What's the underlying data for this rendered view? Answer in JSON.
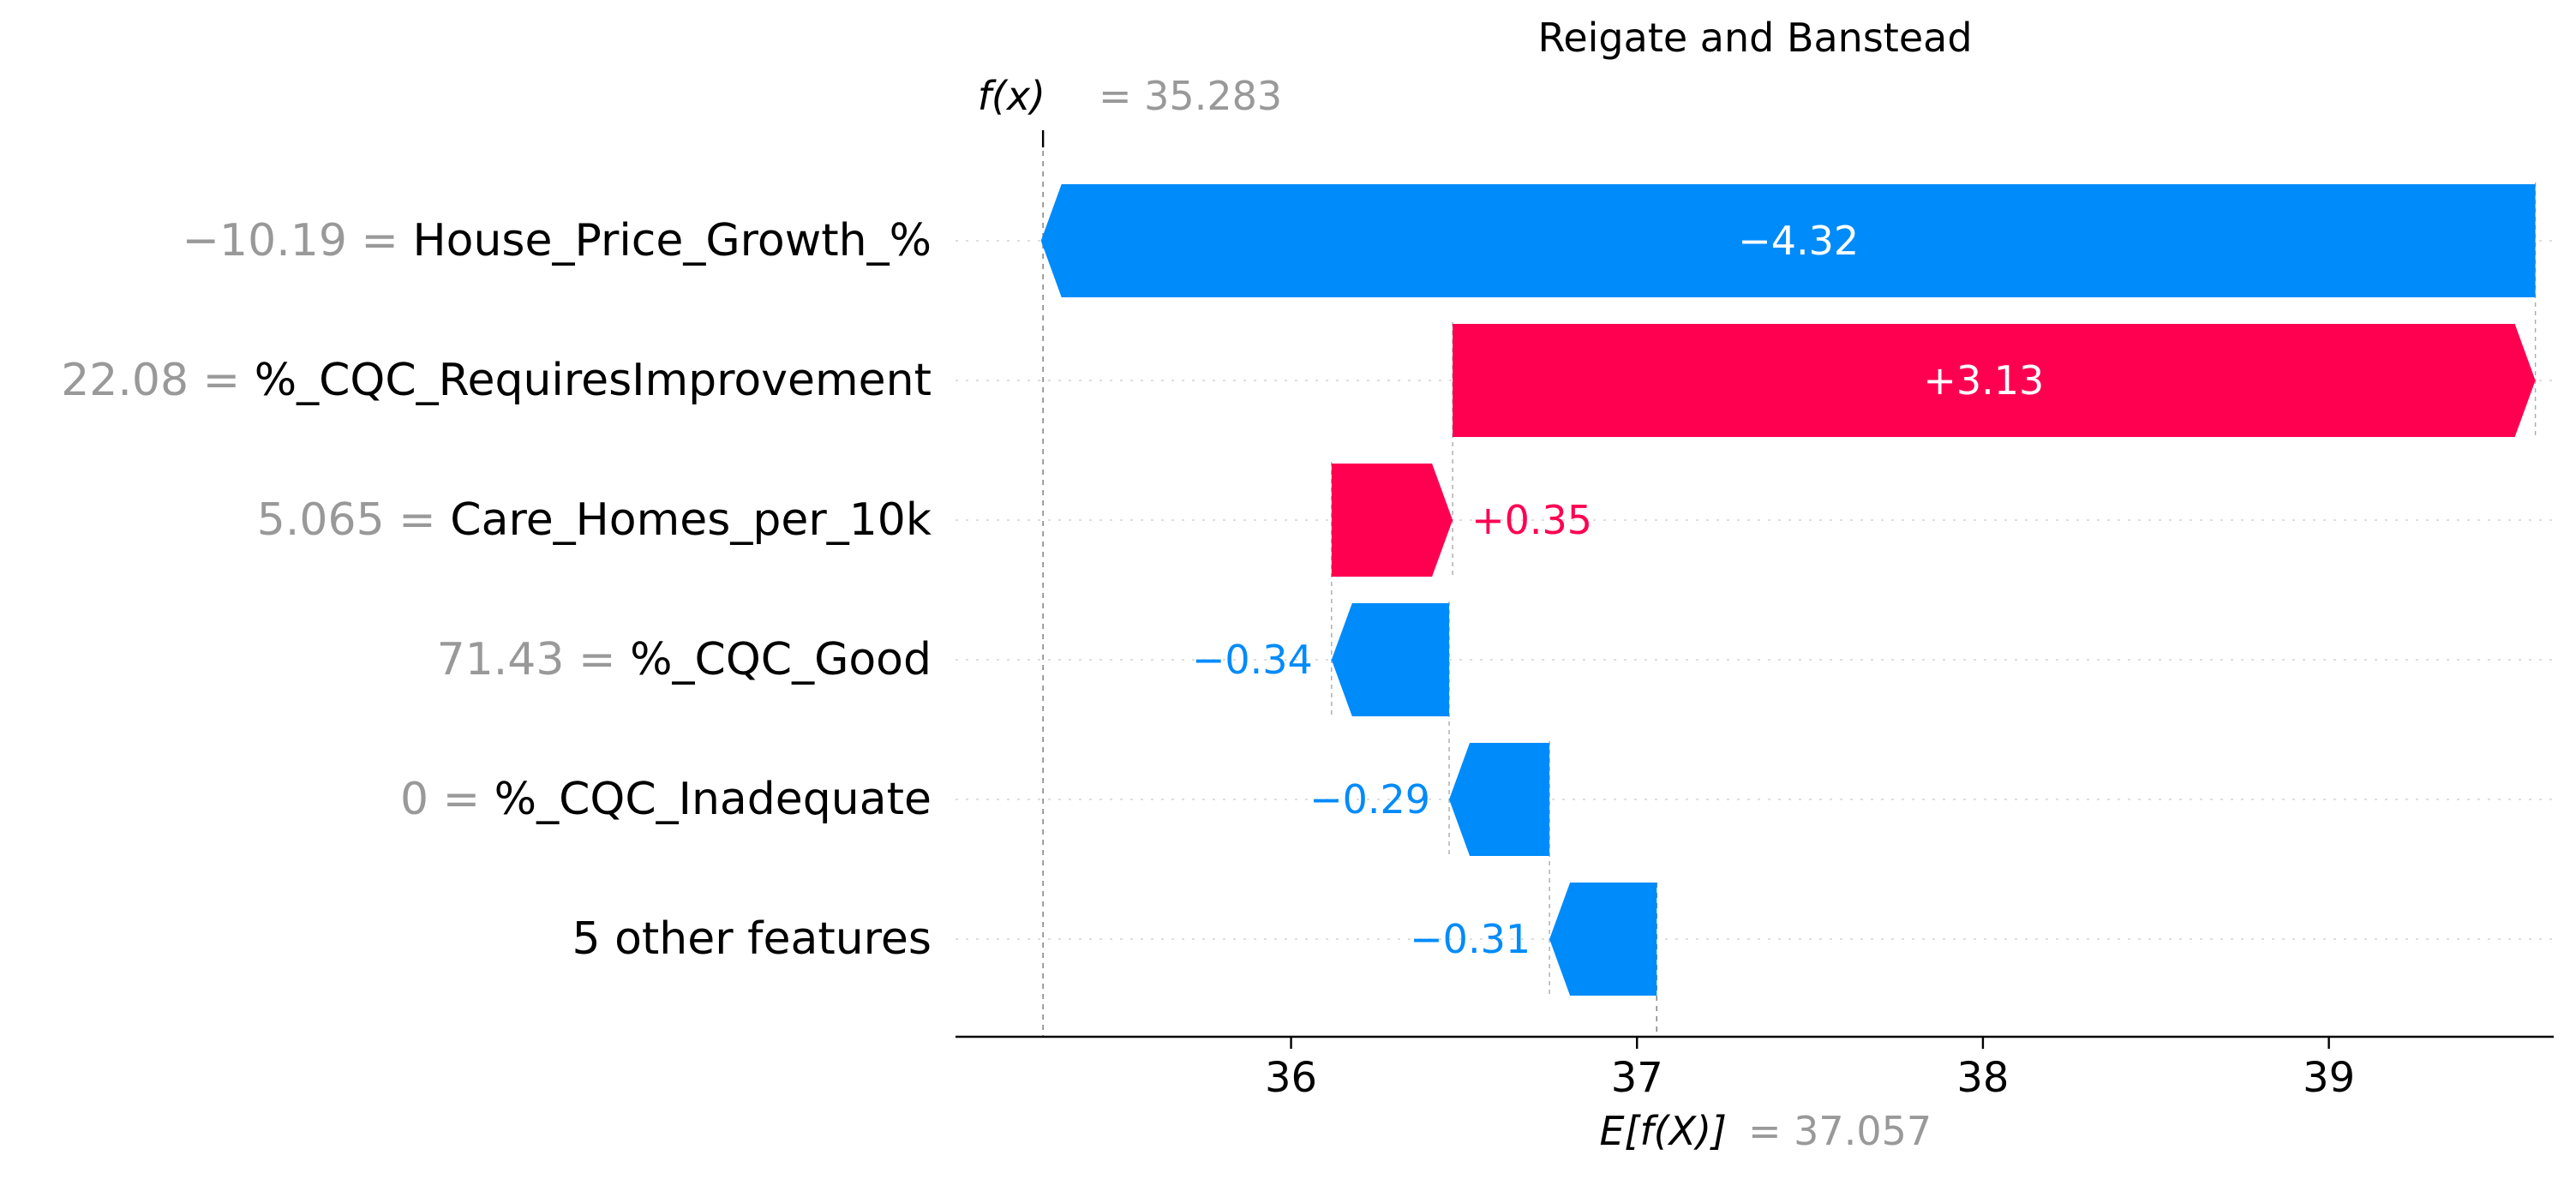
{
  "chart_data": {
    "type": "waterfall",
    "title": "Reigate and Banstead",
    "fx_prefix": "f(x)",
    "fx_value": "= 35.283",
    "ex_prefix": "E[f(X)]",
    "ex_value": "= 37.057",
    "base_value": 37.057,
    "output_value": 35.283,
    "xlim": [
      35.03,
      39.65
    ],
    "xticks": [
      36,
      37,
      38,
      39
    ],
    "grid": false,
    "colors": {
      "positive": "#ff0051",
      "negative": "#008bfb",
      "muted": "#999999",
      "text": "#000000"
    },
    "rows": [
      {
        "feature_value": "−10.19 =",
        "feature": "House_Price_Growth_%",
        "shap": -4.32,
        "label": "−4.32"
      },
      {
        "feature_value": "22.08 =",
        "feature": "%_CQC_RequiresImprovement",
        "shap": 3.13,
        "label": "+3.13"
      },
      {
        "feature_value": "5.065 =",
        "feature": "Care_Homes_per_10k",
        "shap": 0.35,
        "label": "+0.35"
      },
      {
        "feature_value": "71.43 =",
        "feature": "%_CQC_Good",
        "shap": -0.34,
        "label": "−0.34"
      },
      {
        "feature_value": "0 =",
        "feature": "%_CQC_Inadequate",
        "shap": -0.29,
        "label": "−0.29"
      },
      {
        "feature_value": "",
        "feature": "5 other features",
        "shap": -0.31,
        "label": "−0.31"
      }
    ]
  }
}
